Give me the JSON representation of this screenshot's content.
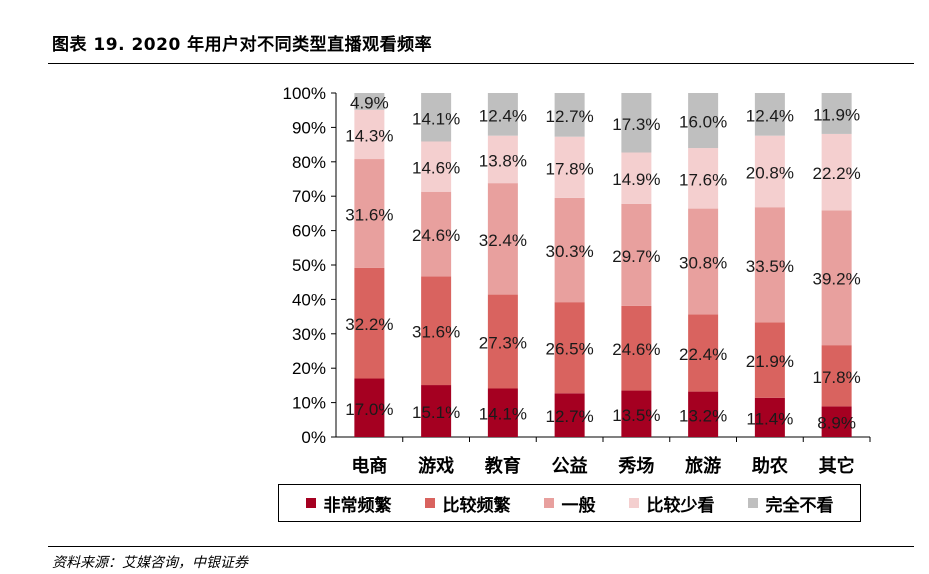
{
  "title": "图表 19. 2020 年用户对不同类型直播观看频率",
  "source": "资料来源：艾媒咨询，中银证券",
  "chart_data": {
    "type": "bar",
    "stacked": true,
    "percent": true,
    "categories": [
      "电商",
      "游戏",
      "教育",
      "公益",
      "秀场",
      "旅游",
      "助农",
      "其它"
    ],
    "series": [
      {
        "name": "非常频繁",
        "color": "#a50021",
        "values": [
          17.0,
          15.1,
          14.1,
          12.7,
          13.5,
          13.2,
          11.4,
          8.9
        ]
      },
      {
        "name": "比较频繁",
        "color": "#d9635f",
        "values": [
          32.2,
          31.6,
          27.3,
          26.5,
          24.6,
          22.4,
          21.9,
          17.8
        ]
      },
      {
        "name": "一般",
        "color": "#e8a09e",
        "values": [
          31.6,
          24.6,
          32.4,
          30.3,
          29.7,
          30.8,
          33.5,
          39.2
        ]
      },
      {
        "name": "比较少看",
        "color": "#f4cfcf",
        "values": [
          14.3,
          14.6,
          13.8,
          17.8,
          14.9,
          17.6,
          20.8,
          22.2
        ]
      },
      {
        "name": "完全不看",
        "color": "#bfbfbf",
        "values": [
          4.9,
          14.1,
          12.4,
          12.7,
          17.3,
          16.0,
          12.4,
          11.9
        ]
      }
    ],
    "y_ticks": [
      "0%",
      "10%",
      "20%",
      "30%",
      "40%",
      "50%",
      "60%",
      "70%",
      "80%",
      "90%",
      "100%"
    ],
    "ylim": [
      0,
      100
    ],
    "legend_position": "bottom",
    "grid": false
  }
}
